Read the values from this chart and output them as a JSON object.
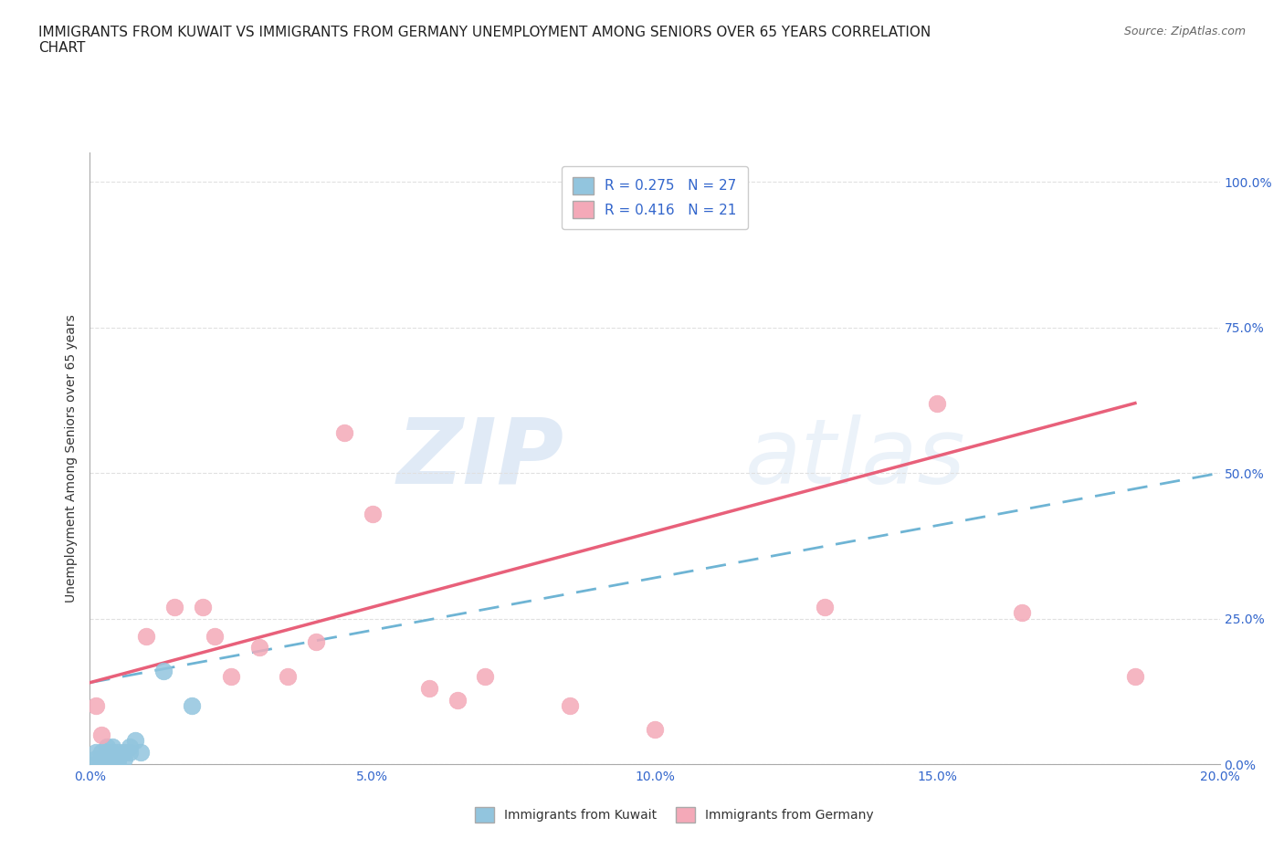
{
  "title": "IMMIGRANTS FROM KUWAIT VS IMMIGRANTS FROM GERMANY UNEMPLOYMENT AMONG SENIORS OVER 65 YEARS CORRELATION\nCHART",
  "source": "Source: ZipAtlas.com",
  "ylabel": "Unemployment Among Seniors over 65 years",
  "xlim": [
    0.0,
    0.2
  ],
  "ylim": [
    0.0,
    1.05
  ],
  "x_ticks": [
    0.0,
    0.05,
    0.1,
    0.15,
    0.2
  ],
  "x_tick_labels": [
    "0.0%",
    "5.0%",
    "10.0%",
    "15.0%",
    "20.0%"
  ],
  "y_ticks_right": [
    0.0,
    0.25,
    0.5,
    0.75,
    1.0
  ],
  "y_tick_labels_right": [
    "0.0%",
    "25.0%",
    "50.0%",
    "75.0%",
    "100.0%"
  ],
  "kuwait_color": "#92C5DE",
  "germany_color": "#F4A9B8",
  "kuwait_line_color": "#6EB4D4",
  "germany_line_color": "#E8607A",
  "kuwait_R": 0.275,
  "kuwait_N": 27,
  "germany_R": 0.416,
  "germany_N": 21,
  "kuwait_x": [
    0.001,
    0.001,
    0.001,
    0.002,
    0.002,
    0.002,
    0.002,
    0.003,
    0.003,
    0.003,
    0.003,
    0.003,
    0.004,
    0.004,
    0.004,
    0.004,
    0.005,
    0.005,
    0.005,
    0.006,
    0.006,
    0.007,
    0.007,
    0.008,
    0.009,
    0.013,
    0.018
  ],
  "kuwait_y": [
    0.0,
    0.01,
    0.02,
    0.0,
    0.01,
    0.01,
    0.02,
    0.0,
    0.01,
    0.01,
    0.02,
    0.03,
    0.0,
    0.01,
    0.02,
    0.03,
    0.0,
    0.01,
    0.02,
    0.01,
    0.02,
    0.02,
    0.03,
    0.04,
    0.02,
    0.16,
    0.1
  ],
  "germany_x": [
    0.001,
    0.002,
    0.01,
    0.015,
    0.02,
    0.022,
    0.025,
    0.03,
    0.035,
    0.04,
    0.045,
    0.05,
    0.06,
    0.065,
    0.07,
    0.085,
    0.1,
    0.13,
    0.15,
    0.165,
    0.185
  ],
  "germany_y": [
    0.1,
    0.05,
    0.22,
    0.27,
    0.27,
    0.22,
    0.15,
    0.2,
    0.15,
    0.21,
    0.57,
    0.43,
    0.13,
    0.11,
    0.15,
    0.1,
    0.06,
    0.27,
    0.62,
    0.26,
    0.15
  ],
  "kuwait_trendline_x": [
    0.0,
    0.2
  ],
  "kuwait_trendline_y": [
    0.14,
    0.5
  ],
  "germany_trendline_x": [
    0.0,
    0.185
  ],
  "germany_trendline_y": [
    0.14,
    0.62
  ],
  "background_color": "#ffffff",
  "grid_color": "#e0e0e0",
  "watermark_zip": "ZIP",
  "watermark_atlas": "atlas",
  "title_fontsize": 11,
  "label_fontsize": 10,
  "tick_fontsize": 10,
  "source_text": "Source: ZipAtlas.com"
}
